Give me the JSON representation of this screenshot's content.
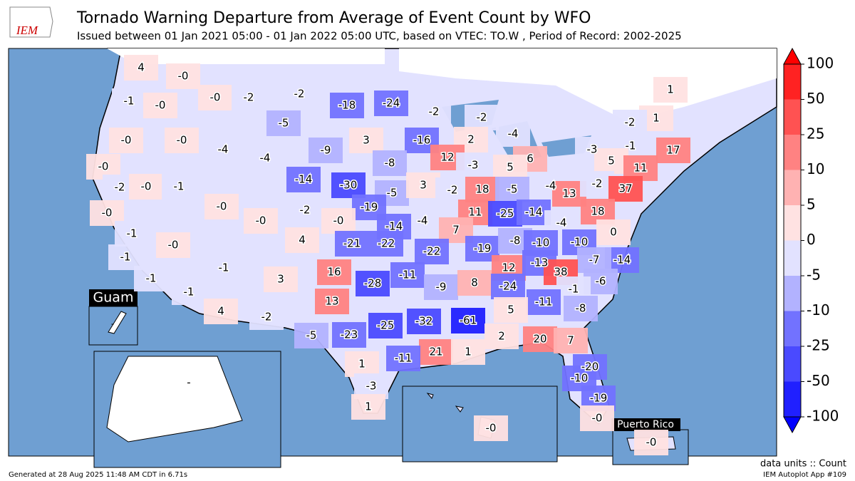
{
  "logo": "IEM",
  "map": {
    "title": "Tornado Warning Departure from Average of Event Count by WFO",
    "subtitle": "Issued between 01 Jan 2021 05:00 - 01 Jan 2022 05:00 UTC, based on VTEC: TO.W  , Period of Record: 2002-2025",
    "inset_titles": [
      "Guam",
      "Puerto Rico"
    ],
    "missing_labels": [
      "-",
      "-"
    ],
    "units_note": "data units :: Count",
    "app_note": "IEM Autoplot App #109",
    "generated_note": "Generated at 28 Aug 2025 11:48 AM CDT in 6.71s",
    "values": [
      4,
      0,
      -1,
      0,
      0,
      -2,
      -2,
      -18,
      -24,
      -2,
      -2,
      -4,
      1,
      1,
      -2,
      0,
      0,
      -5,
      -4,
      3,
      -9,
      -16,
      2,
      6,
      -3,
      -1,
      17,
      0,
      -4,
      -8,
      12,
      -3,
      5,
      5,
      11,
      -2,
      0,
      -1,
      -14,
      -30,
      -5,
      3,
      -2,
      18,
      -5,
      -4,
      13,
      -2,
      37,
      0,
      0,
      -19,
      -2,
      -4,
      11,
      -25,
      -14,
      18,
      -1,
      0,
      4,
      0,
      -14,
      7,
      -4,
      0,
      0,
      -21,
      -22,
      -22,
      -19,
      -8,
      -10,
      -10,
      -1,
      -14,
      -7,
      -1,
      16,
      -28,
      -11,
      12,
      -13,
      38,
      -1,
      3,
      -9,
      8,
      -24,
      -6,
      -1,
      -1,
      13,
      -11,
      -8,
      4,
      -2,
      5,
      -32,
      -61,
      -5,
      -23,
      -25,
      2,
      20,
      7,
      21,
      1,
      -11,
      1,
      -20,
      -10,
      -3,
      -19,
      1,
      0,
      0,
      0
    ],
    "value_labels": [
      "4",
      "-0",
      "-1",
      "-0",
      "-0",
      "-2",
      "-2",
      "-18",
      "-24",
      "-2",
      "-2",
      "-4",
      "1",
      "1",
      "-2",
      "-0",
      "-0",
      "-5",
      "-4",
      "3",
      "-9",
      "-16",
      "2",
      "6",
      "-3",
      "-1",
      "17",
      "-0",
      "-4",
      "-8",
      "12",
      "-3",
      "5",
      "5",
      "11",
      "-2",
      "-0",
      "-1",
      "-14",
      "-30",
      "-5",
      "3",
      "-2",
      "18",
      "-5",
      "-4",
      "13",
      "-2",
      "37",
      "-0",
      "-0",
      "-19",
      "-2",
      "-4",
      "11",
      "-25",
      "-14",
      "18",
      "-1",
      "-0",
      "4",
      "-0",
      "-14",
      "7",
      "-4",
      "0",
      "-0",
      "-21",
      "-22",
      "-22",
      "-19",
      "-8",
      "-10",
      "-10",
      "-1",
      "-14",
      "-7",
      "-1",
      "16",
      "-28",
      "-11",
      "12",
      "-13",
      "38",
      "-1",
      "3",
      "-9",
      "8",
      "-24",
      "-6",
      "-1",
      "-1",
      "13",
      "-11",
      "-8",
      "4",
      "-2",
      "5",
      "-32",
      "-61",
      "-5",
      "-23",
      "-25",
      "2",
      "20",
      "7",
      "21",
      "1",
      "-11",
      "1",
      "-20",
      "-10",
      "-3",
      "-19",
      "1",
      "-0",
      "-0",
      "-0"
    ],
    "colorbar": {
      "ticks": [
        -100,
        -50,
        -25,
        -10,
        -5,
        0,
        5,
        10,
        25,
        50,
        100
      ],
      "colors": [
        "#2020ff",
        "#4a4aff",
        "#7272ff",
        "#b2b2ff",
        "#e2e2ff",
        "#ffe2e2",
        "#ffb2b2",
        "#ff8282",
        "#ff5252",
        "#ff2222"
      ],
      "under_color": "#0000ff",
      "over_color": "#ff0000"
    }
  }
}
